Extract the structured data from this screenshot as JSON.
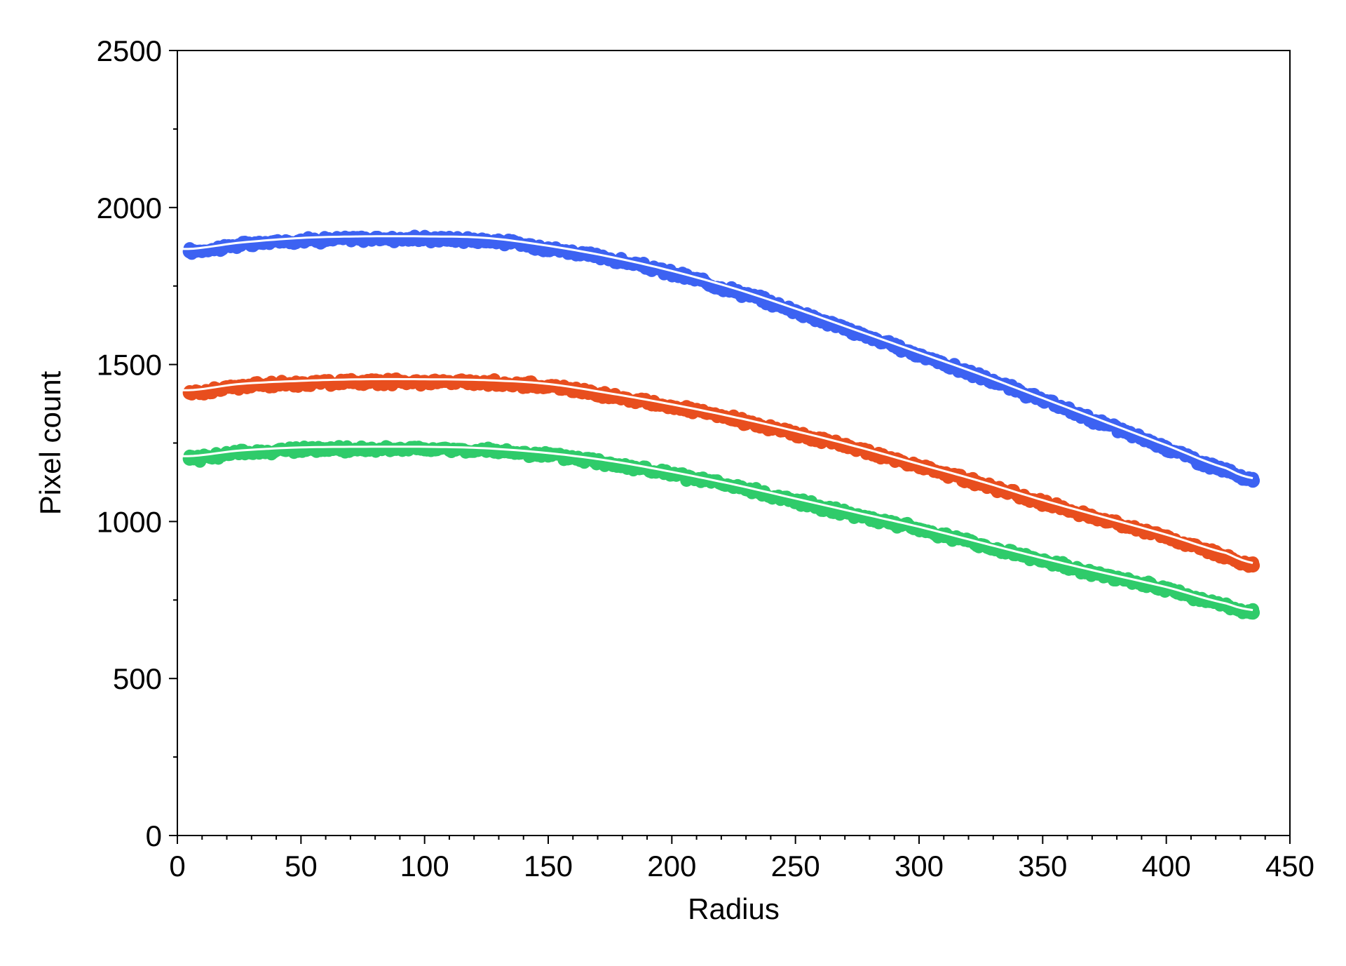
{
  "chart_data": {
    "type": "scatter",
    "title": "",
    "xlabel": "Radius",
    "ylabel": "Pixel count",
    "xlim": [
      0,
      450
    ],
    "ylim": [
      0,
      2500
    ],
    "xticks": [
      0,
      50,
      100,
      150,
      200,
      250,
      300,
      350,
      400,
      450
    ],
    "yticks": [
      0,
      500,
      1000,
      1500,
      2000,
      2500
    ],
    "x_minor_step": 10,
    "y_minor_step": 250,
    "grid": false,
    "legend": "none",
    "fit_line_color": "#ffffff",
    "x": [
      5,
      25,
      50,
      75,
      100,
      125,
      150,
      175,
      200,
      225,
      250,
      275,
      300,
      325,
      350,
      375,
      400,
      425,
      435
    ],
    "series": [
      {
        "color": "#3c62f2",
        "values": [
          1860,
          1880,
          1895,
          1900,
          1900,
          1895,
          1870,
          1835,
          1790,
          1735,
          1670,
          1600,
          1530,
          1460,
          1385,
          1310,
          1235,
          1160,
          1130
        ]
      },
      {
        "color": "#e84e1e",
        "values": [
          1410,
          1430,
          1440,
          1445,
          1445,
          1442,
          1430,
          1400,
          1365,
          1325,
          1280,
          1230,
          1175,
          1120,
          1060,
          1005,
          950,
          890,
          860
        ]
      },
      {
        "color": "#2fcb6a",
        "values": [
          1200,
          1218,
          1228,
          1230,
          1230,
          1225,
          1210,
          1185,
          1150,
          1110,
          1065,
          1020,
          975,
          925,
          875,
          828,
          783,
          730,
          710
        ]
      }
    ]
  }
}
